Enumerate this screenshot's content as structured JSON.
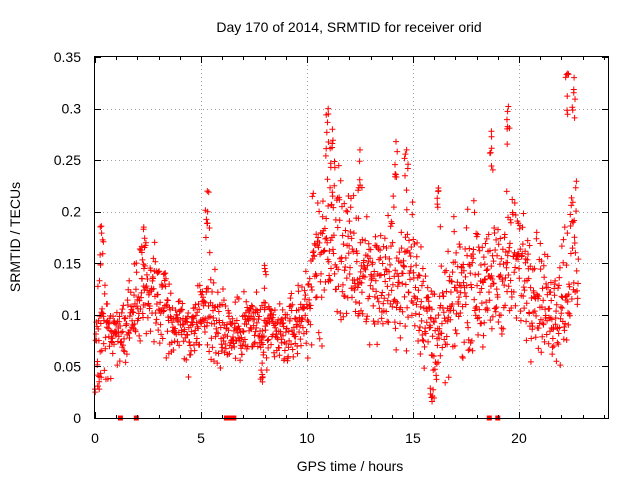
{
  "chart_data": {
    "type": "scatter",
    "title": "Day 170 of 2014, SRMTID for receiver orid",
    "xlabel": "GPS time / hours",
    "ylabel": "SRMTID / TECUs",
    "xlim": [
      0,
      24.2
    ],
    "ylim": [
      0,
      0.35
    ],
    "x_ticks": [
      0,
      5,
      10,
      15,
      20
    ],
    "x_tick_labels": [
      "0",
      "5",
      "10",
      "15",
      "20"
    ],
    "y_ticks": [
      0,
      0.05,
      0.1,
      0.15,
      0.2,
      0.25,
      0.3,
      0.35
    ],
    "y_tick_labels": [
      "0",
      "0.05",
      "0.1",
      "0.15",
      "0.2",
      "0.25",
      "0.3",
      "0.35"
    ],
    "grid": true,
    "marker": "plus",
    "series_color": "#ff0000",
    "zero_markers_x": [
      1.2,
      1.95,
      6.2,
      6.4,
      6.55,
      18.6,
      19.0
    ],
    "series": [
      {
        "name": "SRMTID",
        "envelope_x": [
          0,
          0.3,
          0.6,
          1.0,
          1.4,
          1.8,
          2.2,
          2.6,
          3.0,
          3.5,
          4.0,
          4.5,
          5.0,
          5.3,
          5.6,
          6.0,
          6.5,
          7.0,
          7.5,
          8.0,
          8.5,
          9.0,
          9.5,
          10.0,
          10.3,
          10.6,
          11.0,
          11.5,
          12.0,
          12.5,
          13.0,
          13.5,
          14.0,
          14.5,
          15.0,
          15.5,
          16.0,
          16.5,
          17.0,
          17.5,
          18.0,
          18.5,
          19.0,
          19.5,
          20.0,
          20.5,
          21.0,
          21.5,
          22.0,
          22.5,
          22.8
        ],
        "envelope_mean": [
          0.07,
          0.09,
          0.08,
          0.08,
          0.09,
          0.1,
          0.12,
          0.12,
          0.12,
          0.1,
          0.09,
          0.08,
          0.1,
          0.12,
          0.1,
          0.09,
          0.08,
          0.09,
          0.09,
          0.08,
          0.08,
          0.08,
          0.09,
          0.11,
          0.14,
          0.16,
          0.18,
          0.17,
          0.15,
          0.14,
          0.14,
          0.13,
          0.14,
          0.13,
          0.15,
          0.11,
          0.08,
          0.09,
          0.12,
          0.13,
          0.14,
          0.12,
          0.14,
          0.15,
          0.15,
          0.14,
          0.12,
          0.1,
          0.12,
          0.15,
          0.17
        ],
        "envelope_spread": [
          0.04,
          0.05,
          0.03,
          0.025,
          0.03,
          0.04,
          0.04,
          0.035,
          0.03,
          0.03,
          0.025,
          0.025,
          0.035,
          0.05,
          0.03,
          0.03,
          0.025,
          0.025,
          0.03,
          0.025,
          0.025,
          0.025,
          0.025,
          0.04,
          0.05,
          0.06,
          0.07,
          0.06,
          0.05,
          0.05,
          0.045,
          0.04,
          0.05,
          0.045,
          0.06,
          0.04,
          0.035,
          0.04,
          0.045,
          0.045,
          0.05,
          0.04,
          0.05,
          0.05,
          0.05,
          0.05,
          0.04,
          0.035,
          0.05,
          0.07,
          0.08
        ],
        "peaks": [
          {
            "x": 0.3,
            "y": 0.186
          },
          {
            "x": 2.3,
            "y": 0.185
          },
          {
            "x": 5.3,
            "y": 0.22
          },
          {
            "x": 8.0,
            "y": 0.148
          },
          {
            "x": 11.0,
            "y": 0.3
          },
          {
            "x": 11.2,
            "y": 0.28
          },
          {
            "x": 12.5,
            "y": 0.26
          },
          {
            "x": 14.2,
            "y": 0.268
          },
          {
            "x": 14.7,
            "y": 0.26
          },
          {
            "x": 16.2,
            "y": 0.223
          },
          {
            "x": 18.7,
            "y": 0.278
          },
          {
            "x": 19.5,
            "y": 0.302
          },
          {
            "x": 22.3,
            "y": 0.334
          },
          {
            "x": 22.6,
            "y": 0.33
          },
          {
            "x": 15.9,
            "y": 0.016
          },
          {
            "x": 0.2,
            "y": 0.028
          },
          {
            "x": 7.9,
            "y": 0.035
          }
        ]
      }
    ]
  }
}
